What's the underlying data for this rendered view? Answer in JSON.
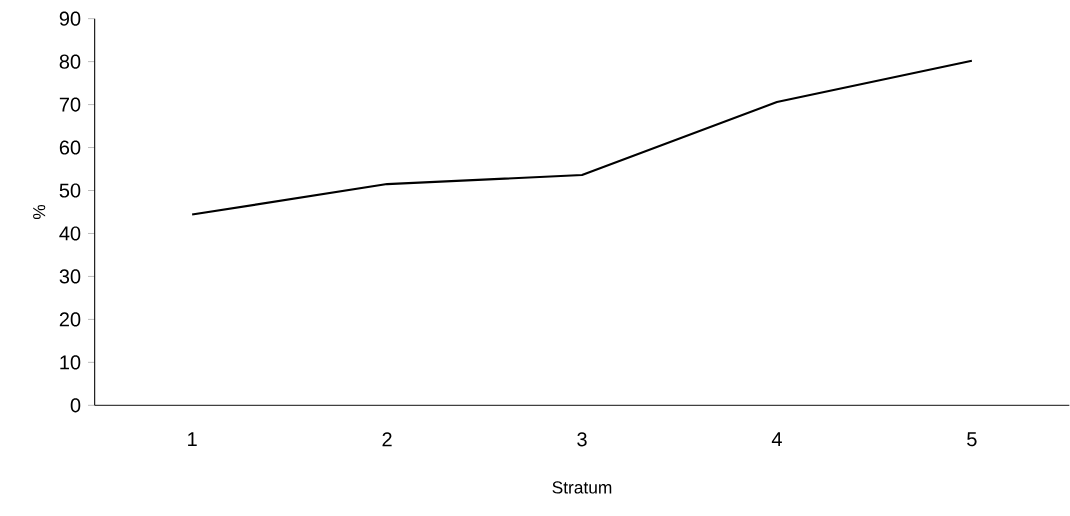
{
  "chart_data": {
    "type": "line",
    "xlabel": "Stratum",
    "ylabel": "%",
    "categories": [
      "1",
      "2",
      "3",
      "4",
      "5"
    ],
    "series": [
      {
        "color": "#000000",
        "values": [
          44.4,
          51.5,
          53.6,
          70.6,
          80.2
        ]
      }
    ],
    "ylim": [
      0,
      90
    ],
    "yticks": [
      0,
      10,
      20,
      30,
      40,
      50,
      60,
      70,
      80,
      90
    ],
    "marker": "none",
    "line_style": "solid"
  }
}
